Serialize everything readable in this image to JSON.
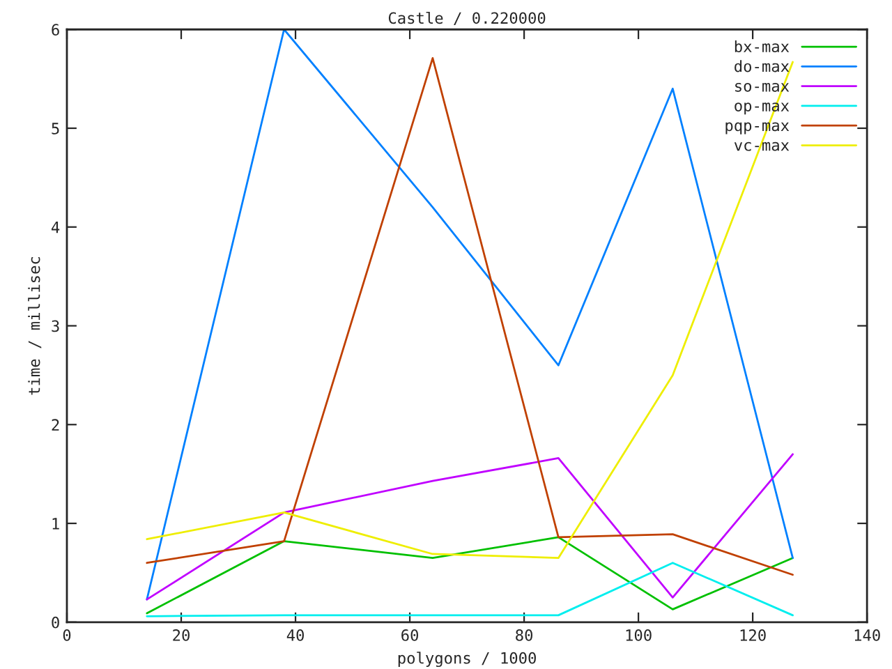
{
  "chart_data": {
    "type": "line",
    "title": "Castle / 0.220000",
    "xlabel": "polygons / 1000",
    "ylabel": "time / millisec",
    "x": [
      14,
      38,
      64,
      86,
      106,
      127
    ],
    "series": [
      {
        "name": "bx-max",
        "color": "#00c000",
        "values": [
          0.09,
          0.82,
          0.65,
          0.86,
          0.13,
          0.65
        ]
      },
      {
        "name": "do-max",
        "color": "#0080ff",
        "values": [
          0.23,
          6.0,
          4.2,
          2.6,
          5.4,
          0.65
        ]
      },
      {
        "name": "so-max",
        "color": "#c000ff",
        "values": [
          0.23,
          1.11,
          1.43,
          1.66,
          0.25,
          1.7
        ]
      },
      {
        "name": "op-max",
        "color": "#00eeee",
        "values": [
          0.06,
          0.07,
          0.07,
          0.07,
          0.6,
          0.07
        ]
      },
      {
        "name": "pqp-max",
        "color": "#c04000",
        "values": [
          0.6,
          0.82,
          5.71,
          0.86,
          0.89,
          0.48
        ]
      },
      {
        "name": "vc-max",
        "color": "#eeee00",
        "values": [
          0.84,
          1.11,
          0.69,
          0.65,
          2.5,
          5.67
        ]
      }
    ],
    "xlim": [
      0,
      140
    ],
    "xticks": [
      0,
      20,
      40,
      60,
      80,
      100,
      120,
      140
    ],
    "ylim": [
      0,
      6
    ],
    "yticks": [
      0,
      1,
      2,
      3,
      4,
      5,
      6
    ],
    "grid": false,
    "legend": "top right",
    "marker": "none",
    "line_style": "solid"
  }
}
